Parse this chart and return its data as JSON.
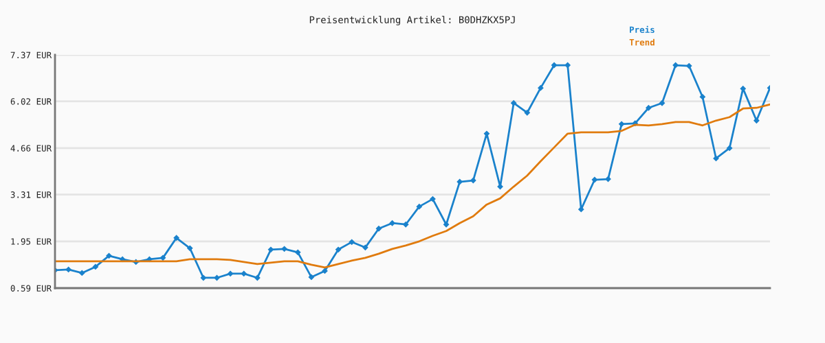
{
  "chart_data": {
    "type": "line",
    "title": "Preisentwicklung Artikel: B0DHZKX5PJ",
    "categories": [
      null,
      null,
      null,
      null,
      null,
      null,
      null,
      null,
      null,
      null,
      null,
      null,
      null,
      null,
      null,
      null,
      null,
      null,
      null,
      null,
      null,
      null,
      null,
      null,
      null,
      null,
      null,
      null,
      null,
      null,
      null,
      null,
      null,
      null,
      null,
      null,
      null,
      null,
      null,
      null,
      null,
      null,
      null,
      null,
      null,
      null,
      null,
      null,
      null,
      null,
      null,
      null,
      null,
      null
    ],
    "series": [
      {
        "name": "Preis",
        "color": "#1a82cc",
        "marker": "diamond",
        "values": [
          1.11,
          1.13,
          1.03,
          1.21,
          1.53,
          1.43,
          1.35,
          1.43,
          1.47,
          2.05,
          1.75,
          0.89,
          0.89,
          1.01,
          1.01,
          0.89,
          1.71,
          1.73,
          1.63,
          0.91,
          1.09,
          1.71,
          1.93,
          1.77,
          2.32,
          2.48,
          2.44,
          2.96,
          3.18,
          2.44,
          3.68,
          3.72,
          5.08,
          3.54,
          5.97,
          5.69,
          6.41,
          7.07,
          7.07,
          2.88,
          3.74,
          3.76,
          5.36,
          5.38,
          5.83,
          5.97,
          7.07,
          7.05,
          6.15,
          4.36,
          4.66,
          6.39,
          5.46,
          6.41
        ]
      },
      {
        "name": "Trend",
        "color": "#e07b0e",
        "marker": "none",
        "values": [
          1.37,
          1.37,
          1.37,
          1.37,
          1.37,
          1.37,
          1.37,
          1.37,
          1.37,
          1.37,
          1.43,
          1.43,
          1.43,
          1.41,
          1.35,
          1.29,
          1.33,
          1.37,
          1.37,
          1.27,
          1.19,
          1.29,
          1.39,
          1.47,
          1.59,
          1.73,
          1.83,
          1.95,
          2.11,
          2.25,
          2.48,
          2.68,
          3.02,
          3.2,
          3.54,
          3.86,
          4.28,
          4.68,
          5.08,
          5.12,
          5.12,
          5.12,
          5.16,
          5.34,
          5.32,
          5.36,
          5.42,
          5.42,
          5.32,
          5.46,
          5.56,
          5.81,
          5.83,
          5.93
        ]
      }
    ],
    "ylim": [
      0.59,
      7.37
    ],
    "yticks": [
      {
        "value": 0.59,
        "label": "0.59 EUR"
      },
      {
        "value": 1.95,
        "label": "1.95 EUR"
      },
      {
        "value": 3.31,
        "label": "3.31 EUR"
      },
      {
        "value": 4.66,
        "label": "4.66 EUR"
      },
      {
        "value": 6.02,
        "label": "6.02 EUR"
      },
      {
        "value": 7.37,
        "label": "7.37 EUR"
      }
    ],
    "grid": "y",
    "legend": "top right"
  }
}
